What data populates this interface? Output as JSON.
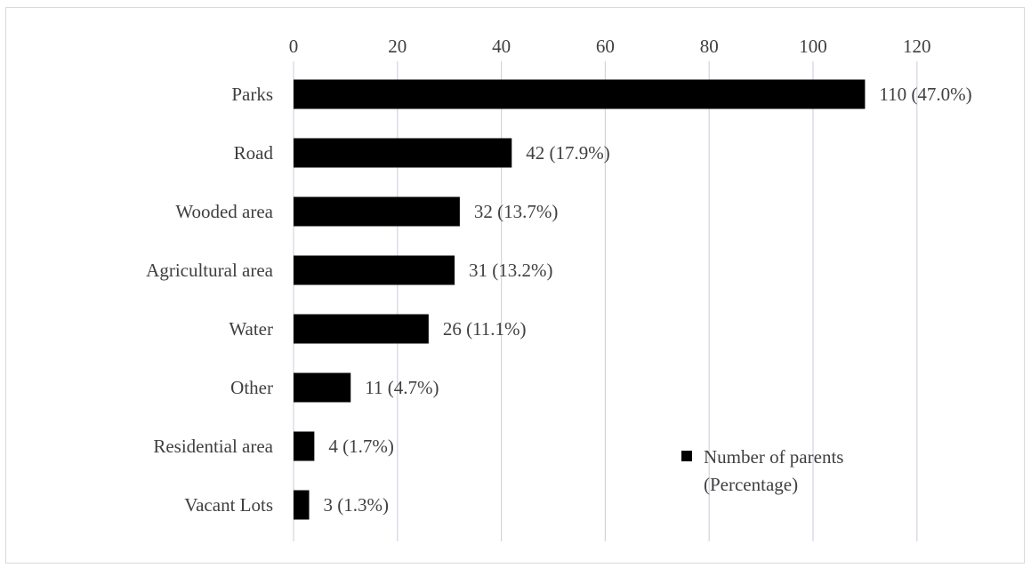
{
  "chart_data": {
    "type": "bar",
    "orientation": "horizontal",
    "categories": [
      "Parks",
      "Road",
      "Wooded area",
      "Agricultural area",
      "Water",
      "Other",
      "Residential area",
      "Vacant Lots"
    ],
    "series": [
      {
        "name": "Number of parents (Percentage)",
        "values": [
          110,
          42,
          32,
          31,
          26,
          11,
          4,
          3
        ],
        "color": "#000000"
      }
    ],
    "data_labels": [
      "110 (47.0%)",
      "42 (17.9%)",
      "32 (13.7%)",
      "31 (13.2%)",
      "26 (11.1%)",
      "11 (4.7%)",
      "4 (1.7%)",
      "3 (1.3%)"
    ],
    "xlim": [
      0,
      120
    ],
    "xticks": [
      0,
      20,
      40,
      60,
      80,
      100,
      120
    ],
    "x_axis_position": "top",
    "grid": "vertical",
    "legend_position": "bottom-right",
    "legend_lines": [
      "Number of parents",
      "(Percentage)"
    ],
    "colors": {
      "bar": "#000000",
      "grid": "#d0d4e3",
      "text": "#404040"
    }
  }
}
